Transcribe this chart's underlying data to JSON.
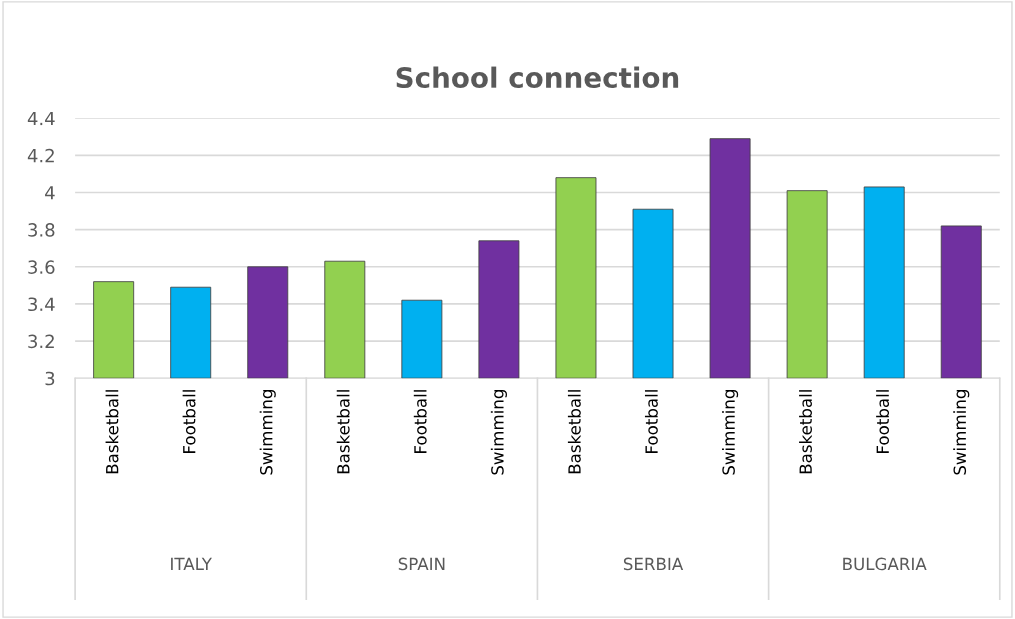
{
  "chart_data": {
    "type": "bar",
    "title": "School connection",
    "categories": [
      "Basketball",
      "Football",
      "Swimming",
      "Basketball",
      "Football",
      "Swimming",
      "Basketball",
      "Football",
      "Swimming",
      "Basketball",
      "Football",
      "Swimming"
    ],
    "values": [
      3.52,
      3.49,
      3.6,
      3.63,
      3.42,
      3.74,
      4.08,
      3.91,
      4.29,
      4.01,
      4.03,
      3.82
    ],
    "colors": [
      "#92d050",
      "#00b0f0",
      "#7030a0",
      "#92d050",
      "#00b0f0",
      "#7030a0",
      "#92d050",
      "#00b0f0",
      "#7030a0",
      "#92d050",
      "#00b0f0",
      "#7030a0"
    ],
    "annotations": [
      "ITALY",
      "SPAIN",
      "SERBIA",
      "BULGARIA"
    ],
    "ylim": [
      3,
      4.4
    ],
    "yticks": [
      3,
      3.2,
      3.4,
      3.6,
      3.8,
      4,
      4.2,
      4.4
    ],
    "grid": "y"
  }
}
